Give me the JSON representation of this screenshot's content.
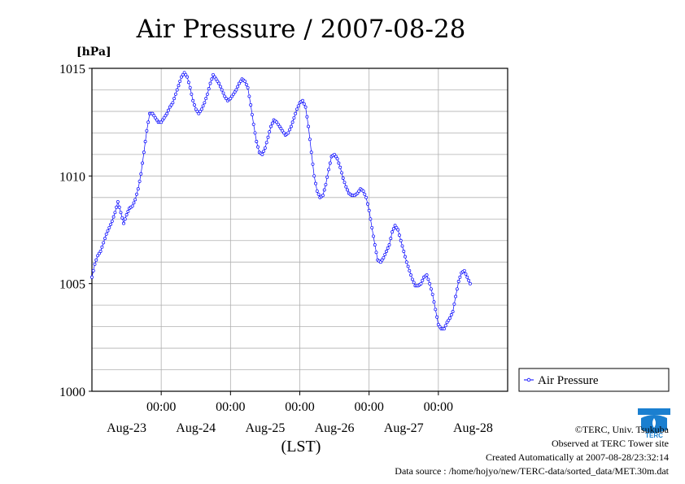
{
  "chart_data": {
    "type": "line",
    "title": "Air Pressure / 2007-08-28",
    "ylabel": "[hPa]",
    "xlabel": "(LST)",
    "ylim": [
      1000,
      1015
    ],
    "y_ticks": [
      "1015",
      "1010",
      "1005",
      "1000"
    ],
    "x_tick_time": "00:00",
    "x_day_labels": [
      "Aug-23",
      "Aug-24",
      "Aug-25",
      "Aug-26",
      "Aug-27",
      "Aug-28"
    ],
    "x_range_hours": [
      -24,
      120
    ],
    "grid": true,
    "legend_position": "right",
    "series": [
      {
        "name": "Air Pressure",
        "color": "#0000ff",
        "marker": "circle",
        "points": [
          [
            -24,
            1005.3
          ],
          [
            -23,
            1005.9
          ],
          [
            -22,
            1006.3
          ],
          [
            -21,
            1006.5
          ],
          [
            -20,
            1006.9
          ],
          [
            -19,
            1007.3
          ],
          [
            -18,
            1007.6
          ],
          [
            -17,
            1007.9
          ],
          [
            -16,
            1008.3
          ],
          [
            -15,
            1008.8
          ],
          [
            -14,
            1008.3
          ],
          [
            -13,
            1007.8
          ],
          [
            -12,
            1008.2
          ],
          [
            -11,
            1008.5
          ],
          [
            -10,
            1008.6
          ],
          [
            -9,
            1008.9
          ],
          [
            -8,
            1009.4
          ],
          [
            -7,
            1010.1
          ],
          [
            -6,
            1011.1
          ],
          [
            -5,
            1012.1
          ],
          [
            -4,
            1012.9
          ],
          [
            -3,
            1012.9
          ],
          [
            -2,
            1012.7
          ],
          [
            -1,
            1012.5
          ],
          [
            0,
            1012.5
          ],
          [
            1,
            1012.7
          ],
          [
            2,
            1012.9
          ],
          [
            3,
            1013.2
          ],
          [
            4,
            1013.4
          ],
          [
            5,
            1013.8
          ],
          [
            6,
            1014.2
          ],
          [
            7,
            1014.6
          ],
          [
            8,
            1014.8
          ],
          [
            9,
            1014.6
          ],
          [
            10,
            1014.1
          ],
          [
            11,
            1013.5
          ],
          [
            12,
            1013.1
          ],
          [
            13,
            1012.9
          ],
          [
            14,
            1013.1
          ],
          [
            15,
            1013.4
          ],
          [
            16,
            1013.8
          ],
          [
            17,
            1014.3
          ],
          [
            18,
            1014.7
          ],
          [
            19,
            1014.5
          ],
          [
            20,
            1014.3
          ],
          [
            21,
            1014.0
          ],
          [
            22,
            1013.7
          ],
          [
            23,
            1013.5
          ],
          [
            24,
            1013.6
          ],
          [
            25,
            1013.8
          ],
          [
            26,
            1014.0
          ],
          [
            27,
            1014.3
          ],
          [
            28,
            1014.5
          ],
          [
            29,
            1014.4
          ],
          [
            30,
            1014.1
          ],
          [
            31,
            1013.3
          ],
          [
            32,
            1012.4
          ],
          [
            33,
            1011.6
          ],
          [
            34,
            1011.1
          ],
          [
            35,
            1011.0
          ],
          [
            36,
            1011.3
          ],
          [
            37,
            1011.8
          ],
          [
            38,
            1012.3
          ],
          [
            39,
            1012.6
          ],
          [
            40,
            1012.5
          ],
          [
            41,
            1012.3
          ],
          [
            42,
            1012.1
          ],
          [
            43,
            1011.9
          ],
          [
            44,
            1012.0
          ],
          [
            45,
            1012.3
          ],
          [
            46,
            1012.7
          ],
          [
            47,
            1013.1
          ],
          [
            48,
            1013.4
          ],
          [
            49,
            1013.5
          ],
          [
            50,
            1013.2
          ],
          [
            51,
            1012.3
          ],
          [
            52,
            1011.1
          ],
          [
            53,
            1010.0
          ],
          [
            54,
            1009.3
          ],
          [
            55,
            1009.0
          ],
          [
            56,
            1009.1
          ],
          [
            57,
            1009.6
          ],
          [
            58,
            1010.3
          ],
          [
            59,
            1010.9
          ],
          [
            60,
            1011.0
          ],
          [
            61,
            1010.8
          ],
          [
            62,
            1010.4
          ],
          [
            63,
            1009.9
          ],
          [
            64,
            1009.5
          ],
          [
            65,
            1009.2
          ],
          [
            66,
            1009.1
          ],
          [
            67,
            1009.1
          ],
          [
            68,
            1009.2
          ],
          [
            69,
            1009.4
          ],
          [
            70,
            1009.3
          ],
          [
            71,
            1009.0
          ],
          [
            72,
            1008.4
          ],
          [
            73,
            1007.6
          ],
          [
            74,
            1006.8
          ],
          [
            75,
            1006.1
          ],
          [
            76,
            1006.0
          ],
          [
            77,
            1006.2
          ],
          [
            78,
            1006.5
          ],
          [
            79,
            1006.8
          ],
          [
            80,
            1007.4
          ],
          [
            81,
            1007.7
          ],
          [
            82,
            1007.5
          ],
          [
            83,
            1007.0
          ],
          [
            84,
            1006.5
          ],
          [
            85,
            1006.0
          ],
          [
            86,
            1005.6
          ],
          [
            87,
            1005.2
          ],
          [
            88,
            1004.9
          ],
          [
            89,
            1004.9
          ],
          [
            90,
            1005.0
          ],
          [
            91,
            1005.3
          ],
          [
            92,
            1005.4
          ],
          [
            93,
            1005.0
          ],
          [
            94,
            1004.5
          ],
          [
            95,
            1003.8
          ],
          [
            96,
            1003.1
          ],
          [
            97,
            1002.9
          ],
          [
            98,
            1002.9
          ],
          [
            99,
            1003.2
          ],
          [
            100,
            1003.4
          ],
          [
            101,
            1003.7
          ],
          [
            102,
            1004.4
          ],
          [
            103,
            1005.1
          ],
          [
            104,
            1005.5
          ],
          [
            105,
            1005.6
          ],
          [
            106,
            1005.3
          ],
          [
            107,
            1005.0
          ]
        ]
      }
    ]
  },
  "legend": {
    "label": "Air Pressure"
  },
  "credits": {
    "line1": "©TERC, Univ. Tsukuba",
    "line2": "Observed at TERC Tower site",
    "line3": "Created Automatically at 2007-08-28/23:32:14",
    "line4": "Data source : /home/hojyo/new/TERC-data/sorted_data/MET.30m.dat"
  },
  "logo": {
    "text": "TERC",
    "color": "#1a7fd0"
  }
}
